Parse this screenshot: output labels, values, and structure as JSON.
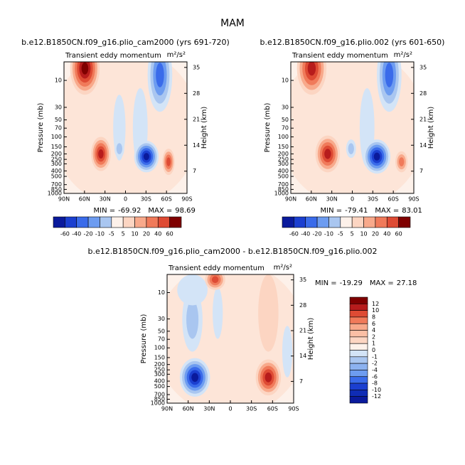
{
  "title": "MAM",
  "chart_data": [
    {
      "type": "contour",
      "title": "b.e12.B1850CN.f09_g16.plio_cam2000 (yrs 691-720)",
      "subtitle": "Transient eddy momentum",
      "units": "m²/s²",
      "min_label": "MIN =",
      "min": -69.92,
      "max_label": "MAX =",
      "max": 98.69,
      "xlim": [
        90,
        -90
      ],
      "xticks": [
        {
          "value": 90,
          "label": "90N"
        },
        {
          "value": 60,
          "label": "60N"
        },
        {
          "value": 30,
          "label": "30N"
        },
        0,
        {
          "value": -30,
          "label": "30S"
        },
        {
          "value": -60,
          "label": "60S"
        },
        {
          "value": -90,
          "label": "90S"
        }
      ],
      "ylim": [
        1000,
        4.7
      ],
      "log_scale": true,
      "yticks": [
        10,
        30,
        50,
        70,
        100,
        150,
        200,
        250,
        300,
        400,
        500,
        700,
        850,
        1000
      ],
      "ylabel": "Pressure (mb)",
      "y2lim": [
        1,
        36.5
      ],
      "y2ticks": [
        7,
        14,
        21,
        28,
        35
      ],
      "y2label": "Height (km)",
      "colorbar": {
        "orientation": "horizontal",
        "levels": [
          -60,
          -40,
          -20,
          -10,
          -5,
          5,
          10,
          20,
          40,
          60
        ],
        "colors": [
          "#0a1a9c",
          "#1b3fd0",
          "#3a6bea",
          "#6d9cf0",
          "#a9c6f0",
          "#fdf1ea",
          "#fcd5c2",
          "#f8a98b",
          "#f07a5a",
          "#de4b34",
          "#7f0000"
        ]
      }
    },
    {
      "type": "contour",
      "title": "b.e12.B1850CN.f09_g16.plio.002 (yrs 601-650)",
      "subtitle": "Transient eddy momentum",
      "units": "m²/s²",
      "min_label": "MIN =",
      "min": -79.41,
      "max_label": "MAX =",
      "max": 83.01,
      "xlim": [
        90,
        -90
      ],
      "xticks": [
        {
          "value": 90,
          "label": "90N"
        },
        {
          "value": 60,
          "label": "60N"
        },
        {
          "value": 30,
          "label": "30N"
        },
        0,
        {
          "value": -30,
          "label": "30S"
        },
        {
          "value": -60,
          "label": "60S"
        },
        {
          "value": -90,
          "label": "90S"
        }
      ],
      "ylim": [
        1000,
        4.7
      ],
      "log_scale": true,
      "yticks": [
        10,
        30,
        50,
        70,
        100,
        150,
        200,
        250,
        300,
        400,
        500,
        700,
        850,
        1000
      ],
      "ylabel": "Pressure (mb)",
      "y2lim": [
        1,
        36.5
      ],
      "y2ticks": [
        7,
        14,
        21,
        28,
        35
      ],
      "y2label": "Height (km)",
      "colorbar": {
        "orientation": "horizontal",
        "levels": [
          -60,
          -40,
          -20,
          -10,
          -5,
          5,
          10,
          20,
          40,
          60
        ],
        "colors": [
          "#0a1a9c",
          "#1b3fd0",
          "#3a6bea",
          "#6d9cf0",
          "#a9c6f0",
          "#fdf1ea",
          "#fcd5c2",
          "#f8a98b",
          "#f07a5a",
          "#de4b34",
          "#7f0000"
        ]
      }
    },
    {
      "type": "contour",
      "title": "b.e12.B1850CN.f09_g16.plio_cam2000 - b.e12.B1850CN.f09_g16.plio.002",
      "subtitle": "Transient eddy momentum",
      "units": "m²/s²",
      "min_label": "MIN =",
      "min": -19.29,
      "max_label": "MAX =",
      "max": 27.18,
      "xlim": [
        90,
        -90
      ],
      "xticks": [
        {
          "value": 90,
          "label": "90N"
        },
        {
          "value": 60,
          "label": "60N"
        },
        {
          "value": 30,
          "label": "30N"
        },
        0,
        {
          "value": -30,
          "label": "30S"
        },
        {
          "value": -60,
          "label": "60S"
        },
        {
          "value": -90,
          "label": "90S"
        }
      ],
      "ylim": [
        1000,
        4.7
      ],
      "log_scale": true,
      "yticks": [
        10,
        30,
        50,
        70,
        100,
        150,
        200,
        250,
        300,
        400,
        500,
        700,
        850,
        1000
      ],
      "ylabel": "Pressure (mb)",
      "y2lim": [
        1,
        36.5
      ],
      "y2ticks": [
        7,
        14,
        21,
        28,
        35
      ],
      "y2label": "Height (km)",
      "colorbar": {
        "orientation": "vertical",
        "levels": [
          12,
          10,
          8,
          6,
          4,
          2,
          1,
          0,
          -1,
          -2,
          -4,
          -6,
          -8,
          -10,
          -12
        ],
        "colors": [
          "#7f0000",
          "#b71c1c",
          "#de4b34",
          "#f07a5a",
          "#f8a98b",
          "#fbbfa5",
          "#fcd5c2",
          "#fdf1ea",
          "#d3e4f7",
          "#a9c6f0",
          "#8cb2f0",
          "#6d9cf0",
          "#3a6bea",
          "#1b3fd0",
          "#0f2cb5",
          "#0a1a9c"
        ]
      }
    }
  ]
}
